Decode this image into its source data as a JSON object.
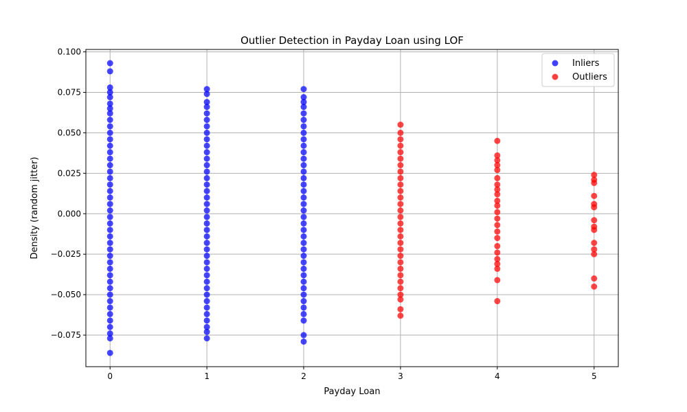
{
  "chart_data": {
    "type": "scatter",
    "title": "Outlier Detection in Payday Loan using LOF",
    "xlabel": "Payday Loan",
    "ylabel": "Density (random jitter)",
    "xlim": [
      -0.25,
      5.25
    ],
    "ylim": [
      -0.0945,
      0.1015
    ],
    "x_ticks": [
      0,
      1,
      2,
      3,
      4,
      5
    ],
    "x_tick_labels": [
      "0",
      "1",
      "2",
      "3",
      "4",
      "5"
    ],
    "y_ticks": [
      -0.075,
      -0.05,
      -0.025,
      0.0,
      0.025,
      0.05,
      0.075,
      0.1
    ],
    "y_tick_labels": [
      "−0.075",
      "−0.050",
      "−0.025",
      "0.000",
      "0.025",
      "0.050",
      "0.075",
      "0.100"
    ],
    "grid": true,
    "legend_position": "top-right",
    "series": [
      {
        "name": "Inliers",
        "color": "#0000ff",
        "points": [
          [
            0,
            0.093
          ],
          [
            0,
            0.088
          ],
          [
            0,
            0.078
          ],
          [
            0,
            0.075
          ],
          [
            0,
            0.072
          ],
          [
            0,
            0.068
          ],
          [
            0,
            0.065
          ],
          [
            0,
            0.062
          ],
          [
            0,
            0.058
          ],
          [
            0,
            0.054
          ],
          [
            0,
            0.05
          ],
          [
            0,
            0.046
          ],
          [
            0,
            0.042
          ],
          [
            0,
            0.038
          ],
          [
            0,
            0.034
          ],
          [
            0,
            0.03
          ],
          [
            0,
            0.026
          ],
          [
            0,
            0.022
          ],
          [
            0,
            0.018
          ],
          [
            0,
            0.014
          ],
          [
            0,
            0.01
          ],
          [
            0,
            0.006
          ],
          [
            0,
            0.002
          ],
          [
            0,
            -0.002
          ],
          [
            0,
            -0.006
          ],
          [
            0,
            -0.01
          ],
          [
            0,
            -0.014
          ],
          [
            0,
            -0.018
          ],
          [
            0,
            -0.022
          ],
          [
            0,
            -0.026
          ],
          [
            0,
            -0.03
          ],
          [
            0,
            -0.034
          ],
          [
            0,
            -0.038
          ],
          [
            0,
            -0.042
          ],
          [
            0,
            -0.046
          ],
          [
            0,
            -0.05
          ],
          [
            0,
            -0.054
          ],
          [
            0,
            -0.058
          ],
          [
            0,
            -0.062
          ],
          [
            0,
            -0.066
          ],
          [
            0,
            -0.07
          ],
          [
            0,
            -0.074
          ],
          [
            0,
            -0.077
          ],
          [
            0,
            -0.086
          ],
          [
            1,
            0.077
          ],
          [
            1,
            0.074
          ],
          [
            1,
            0.069
          ],
          [
            1,
            0.066
          ],
          [
            1,
            0.062
          ],
          [
            1,
            0.058
          ],
          [
            1,
            0.054
          ],
          [
            1,
            0.05
          ],
          [
            1,
            0.046
          ],
          [
            1,
            0.042
          ],
          [
            1,
            0.038
          ],
          [
            1,
            0.034
          ],
          [
            1,
            0.03
          ],
          [
            1,
            0.026
          ],
          [
            1,
            0.022
          ],
          [
            1,
            0.018
          ],
          [
            1,
            0.014
          ],
          [
            1,
            0.01
          ],
          [
            1,
            0.006
          ],
          [
            1,
            0.002
          ],
          [
            1,
            -0.002
          ],
          [
            1,
            -0.006
          ],
          [
            1,
            -0.01
          ],
          [
            1,
            -0.014
          ],
          [
            1,
            -0.018
          ],
          [
            1,
            -0.022
          ],
          [
            1,
            -0.026
          ],
          [
            1,
            -0.03
          ],
          [
            1,
            -0.034
          ],
          [
            1,
            -0.038
          ],
          [
            1,
            -0.042
          ],
          [
            1,
            -0.046
          ],
          [
            1,
            -0.05
          ],
          [
            1,
            -0.054
          ],
          [
            1,
            -0.058
          ],
          [
            1,
            -0.062
          ],
          [
            1,
            -0.066
          ],
          [
            1,
            -0.07
          ],
          [
            1,
            -0.073
          ],
          [
            1,
            -0.077
          ],
          [
            2,
            0.077
          ],
          [
            2,
            0.072
          ],
          [
            2,
            0.069
          ],
          [
            2,
            0.066
          ],
          [
            2,
            0.062
          ],
          [
            2,
            0.058
          ],
          [
            2,
            0.054
          ],
          [
            2,
            0.05
          ],
          [
            2,
            0.046
          ],
          [
            2,
            0.042
          ],
          [
            2,
            0.038
          ],
          [
            2,
            0.034
          ],
          [
            2,
            0.03
          ],
          [
            2,
            0.026
          ],
          [
            2,
            0.022
          ],
          [
            2,
            0.018
          ],
          [
            2,
            0.014
          ],
          [
            2,
            0.01
          ],
          [
            2,
            0.006
          ],
          [
            2,
            0.002
          ],
          [
            2,
            -0.002
          ],
          [
            2,
            -0.006
          ],
          [
            2,
            -0.01
          ],
          [
            2,
            -0.014
          ],
          [
            2,
            -0.018
          ],
          [
            2,
            -0.022
          ],
          [
            2,
            -0.026
          ],
          [
            2,
            -0.03
          ],
          [
            2,
            -0.034
          ],
          [
            2,
            -0.038
          ],
          [
            2,
            -0.042
          ],
          [
            2,
            -0.046
          ],
          [
            2,
            -0.05
          ],
          [
            2,
            -0.054
          ],
          [
            2,
            -0.058
          ],
          [
            2,
            -0.062
          ],
          [
            2,
            -0.066
          ],
          [
            2,
            -0.075
          ],
          [
            2,
            -0.079
          ]
        ]
      },
      {
        "name": "Outliers",
        "color": "#ff0000",
        "points": [
          [
            3,
            0.055
          ],
          [
            3,
            0.05
          ],
          [
            3,
            0.046
          ],
          [
            3,
            0.042
          ],
          [
            3,
            0.038
          ],
          [
            3,
            0.034
          ],
          [
            3,
            0.03
          ],
          [
            3,
            0.026
          ],
          [
            3,
            0.022
          ],
          [
            3,
            0.018
          ],
          [
            3,
            0.014
          ],
          [
            3,
            0.01
          ],
          [
            3,
            0.006
          ],
          [
            3,
            0.002
          ],
          [
            3,
            -0.002
          ],
          [
            3,
            -0.006
          ],
          [
            3,
            -0.01
          ],
          [
            3,
            -0.014
          ],
          [
            3,
            -0.018
          ],
          [
            3,
            -0.022
          ],
          [
            3,
            -0.026
          ],
          [
            3,
            -0.03
          ],
          [
            3,
            -0.034
          ],
          [
            3,
            -0.038
          ],
          [
            3,
            -0.042
          ],
          [
            3,
            -0.046
          ],
          [
            3,
            -0.05
          ],
          [
            3,
            -0.053
          ],
          [
            3,
            -0.059
          ],
          [
            3,
            -0.063
          ],
          [
            4,
            0.045
          ],
          [
            4,
            0.036
          ],
          [
            4,
            0.033
          ],
          [
            4,
            0.03
          ],
          [
            4,
            0.027
          ],
          [
            4,
            0.022
          ],
          [
            4,
            0.018
          ],
          [
            4,
            0.015
          ],
          [
            4,
            0.012
          ],
          [
            4,
            0.008
          ],
          [
            4,
            0.005
          ],
          [
            4,
            0.001
          ],
          [
            4,
            -0.003
          ],
          [
            4,
            -0.007
          ],
          [
            4,
            -0.011
          ],
          [
            4,
            -0.015
          ],
          [
            4,
            -0.02
          ],
          [
            4,
            -0.024
          ],
          [
            4,
            -0.028
          ],
          [
            4,
            -0.031
          ],
          [
            4,
            -0.034
          ],
          [
            4,
            -0.041
          ],
          [
            4,
            -0.054
          ],
          [
            5,
            0.024
          ],
          [
            5,
            0.021
          ],
          [
            5,
            0.019
          ],
          [
            5,
            0.011
          ],
          [
            5,
            0.006
          ],
          [
            5,
            0.004
          ],
          [
            5,
            -0.004
          ],
          [
            5,
            -0.008
          ],
          [
            5,
            -0.01
          ],
          [
            5,
            -0.018
          ],
          [
            5,
            -0.022
          ],
          [
            5,
            -0.025
          ],
          [
            5,
            -0.04
          ],
          [
            5,
            -0.045
          ]
        ]
      }
    ]
  }
}
